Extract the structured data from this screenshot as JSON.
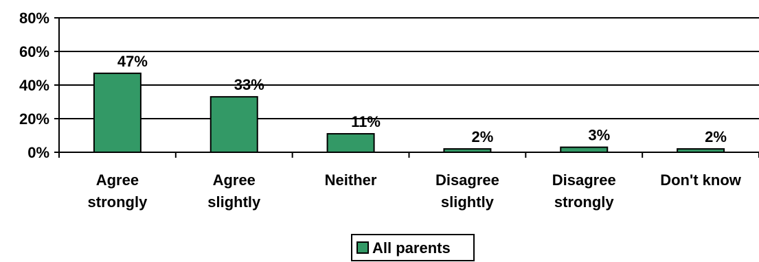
{
  "chart_data": {
    "type": "bar",
    "categories": [
      [
        "Agree",
        "strongly"
      ],
      [
        "Agree",
        "slightly"
      ],
      [
        "Neither"
      ],
      [
        "Disagree",
        "slightly"
      ],
      [
        "Disagree",
        "strongly"
      ],
      [
        "Don't know"
      ]
    ],
    "series": [
      {
        "name": "All parents",
        "values": [
          47,
          33,
          11,
          2,
          3,
          2
        ],
        "color": "#339966"
      }
    ],
    "data_labels": [
      "47%",
      "33%",
      "11%",
      "2%",
      "3%",
      "2%"
    ],
    "y_ticks": [
      "0%",
      "20%",
      "40%",
      "60%",
      "80%"
    ],
    "ylim": [
      0,
      80
    ],
    "grid": true,
    "legend_position": "bottom-center"
  }
}
